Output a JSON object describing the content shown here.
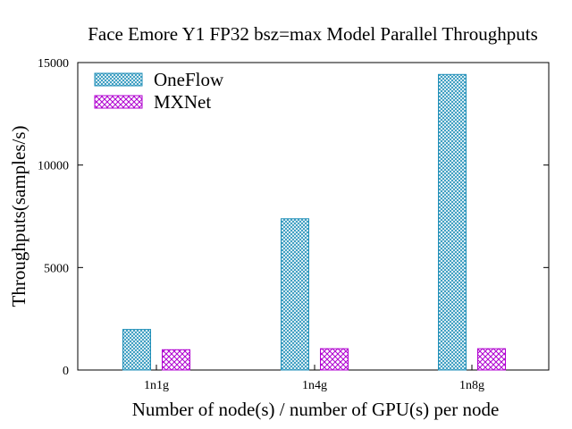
{
  "chart_data": {
    "type": "bar",
    "title": "Face Emore  Y1  FP32 bsz=max Model Parallel Throughputs",
    "xlabel": "Number of node(s) / number of GPU(s) per node",
    "ylabel": "Throughputs(samples/s)",
    "categories": [
      "1n1g",
      "1n4g",
      "1n8g"
    ],
    "series": [
      {
        "name": "OneFlow",
        "values": [
          1980,
          7380,
          14420
        ],
        "color": "#1f8fb8"
      },
      {
        "name": "MXNet",
        "values": [
          990,
          1040,
          1040
        ],
        "color": "#b000d0"
      }
    ],
    "ylim": [
      0,
      15000
    ],
    "yticks": [
      "0",
      "5000",
      "10000",
      "15000"
    ],
    "legend": "top-left",
    "grid": false
  }
}
